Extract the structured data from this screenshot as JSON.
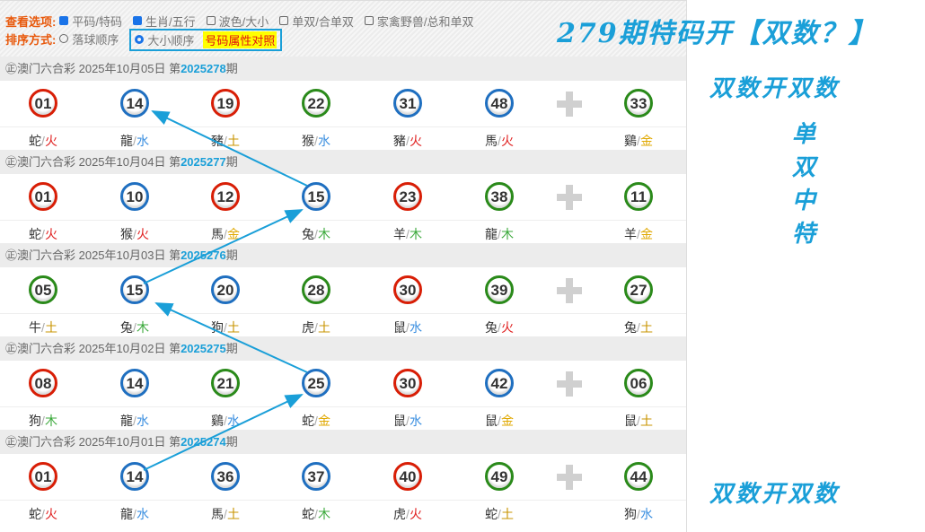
{
  "options": {
    "view_label": "查看选项:",
    "view": [
      {
        "label": "平码/特码",
        "checked": true
      },
      {
        "label": "生肖/五行",
        "checked": true
      },
      {
        "label": "波色/大小",
        "checked": false
      },
      {
        "label": "单双/合单双",
        "checked": false
      },
      {
        "label": "家禽野兽/总和单双",
        "checked": false
      }
    ],
    "sort_label": "排序方式:",
    "sort": [
      {
        "label": "落球顺序",
        "selected": false
      },
      {
        "label": "大小顺序",
        "selected": true
      }
    ],
    "compare_link": "号码属性对照"
  },
  "colors": {
    "red": "#d81e06",
    "blue": "#1f6fc0",
    "green": "#2a8a1a",
    "火": "#e02020",
    "水": "#3b8fe0",
    "土": "#c89400",
    "金": "#e0a800",
    "木": "#3aa83a"
  },
  "draws": [
    {
      "prefix": "㊣澳门六合彩 2025年10月05日 第",
      "issue": "2025278",
      "suffix": "期",
      "balls": [
        [
          "01",
          "red",
          "蛇",
          "火"
        ],
        [
          "14",
          "blue",
          "龍",
          "水"
        ],
        [
          "19",
          "red",
          "豬",
          "土"
        ],
        [
          "22",
          "green",
          "猴",
          "水"
        ],
        [
          "31",
          "blue",
          "豬",
          "火"
        ],
        [
          "48",
          "blue",
          "馬",
          "火"
        ],
        [
          "33",
          "green",
          "鷄",
          "金"
        ]
      ]
    },
    {
      "prefix": "㊣澳门六合彩 2025年10月04日 第",
      "issue": "2025277",
      "suffix": "期",
      "balls": [
        [
          "01",
          "red",
          "蛇",
          "火"
        ],
        [
          "10",
          "blue",
          "猴",
          "火"
        ],
        [
          "12",
          "red",
          "馬",
          "金"
        ],
        [
          "15",
          "blue",
          "兔",
          "木"
        ],
        [
          "23",
          "red",
          "羊",
          "木"
        ],
        [
          "38",
          "green",
          "龍",
          "木"
        ],
        [
          "11",
          "green",
          "羊",
          "金"
        ]
      ]
    },
    {
      "prefix": "㊣澳门六合彩 2025年10月03日 第",
      "issue": "2025276",
      "suffix": "期",
      "balls": [
        [
          "05",
          "green",
          "牛",
          "土"
        ],
        [
          "15",
          "blue",
          "兔",
          "木"
        ],
        [
          "20",
          "blue",
          "狗",
          "土"
        ],
        [
          "28",
          "green",
          "虎",
          "土"
        ],
        [
          "30",
          "red",
          "鼠",
          "水"
        ],
        [
          "39",
          "green",
          "兔",
          "火"
        ],
        [
          "27",
          "green",
          "兔",
          "土"
        ]
      ]
    },
    {
      "prefix": "㊣澳门六合彩 2025年10月02日 第",
      "issue": "2025275",
      "suffix": "期",
      "balls": [
        [
          "08",
          "red",
          "狗",
          "木"
        ],
        [
          "14",
          "blue",
          "龍",
          "水"
        ],
        [
          "21",
          "green",
          "鷄",
          "水"
        ],
        [
          "25",
          "blue",
          "蛇",
          "金"
        ],
        [
          "30",
          "red",
          "鼠",
          "水"
        ],
        [
          "42",
          "blue",
          "鼠",
          "金"
        ],
        [
          "06",
          "green",
          "鼠",
          "土"
        ]
      ]
    },
    {
      "prefix": "㊣澳门六合彩 2025年10月01日 第",
      "issue": "2025274",
      "suffix": "期",
      "balls": [
        [
          "01",
          "red",
          "蛇",
          "火"
        ],
        [
          "14",
          "blue",
          "龍",
          "水"
        ],
        [
          "36",
          "blue",
          "馬",
          "土"
        ],
        [
          "37",
          "blue",
          "蛇",
          "木"
        ],
        [
          "40",
          "red",
          "虎",
          "火"
        ],
        [
          "49",
          "green",
          "蛇",
          "土"
        ],
        [
          "44",
          "green",
          "狗",
          "水"
        ]
      ]
    }
  ],
  "annotations": {
    "title": "279期特码开【双数？】",
    "top": "双数开双数",
    "bottom": "双数开双数",
    "vertical": [
      "单",
      "双",
      "中",
      "特"
    ]
  }
}
